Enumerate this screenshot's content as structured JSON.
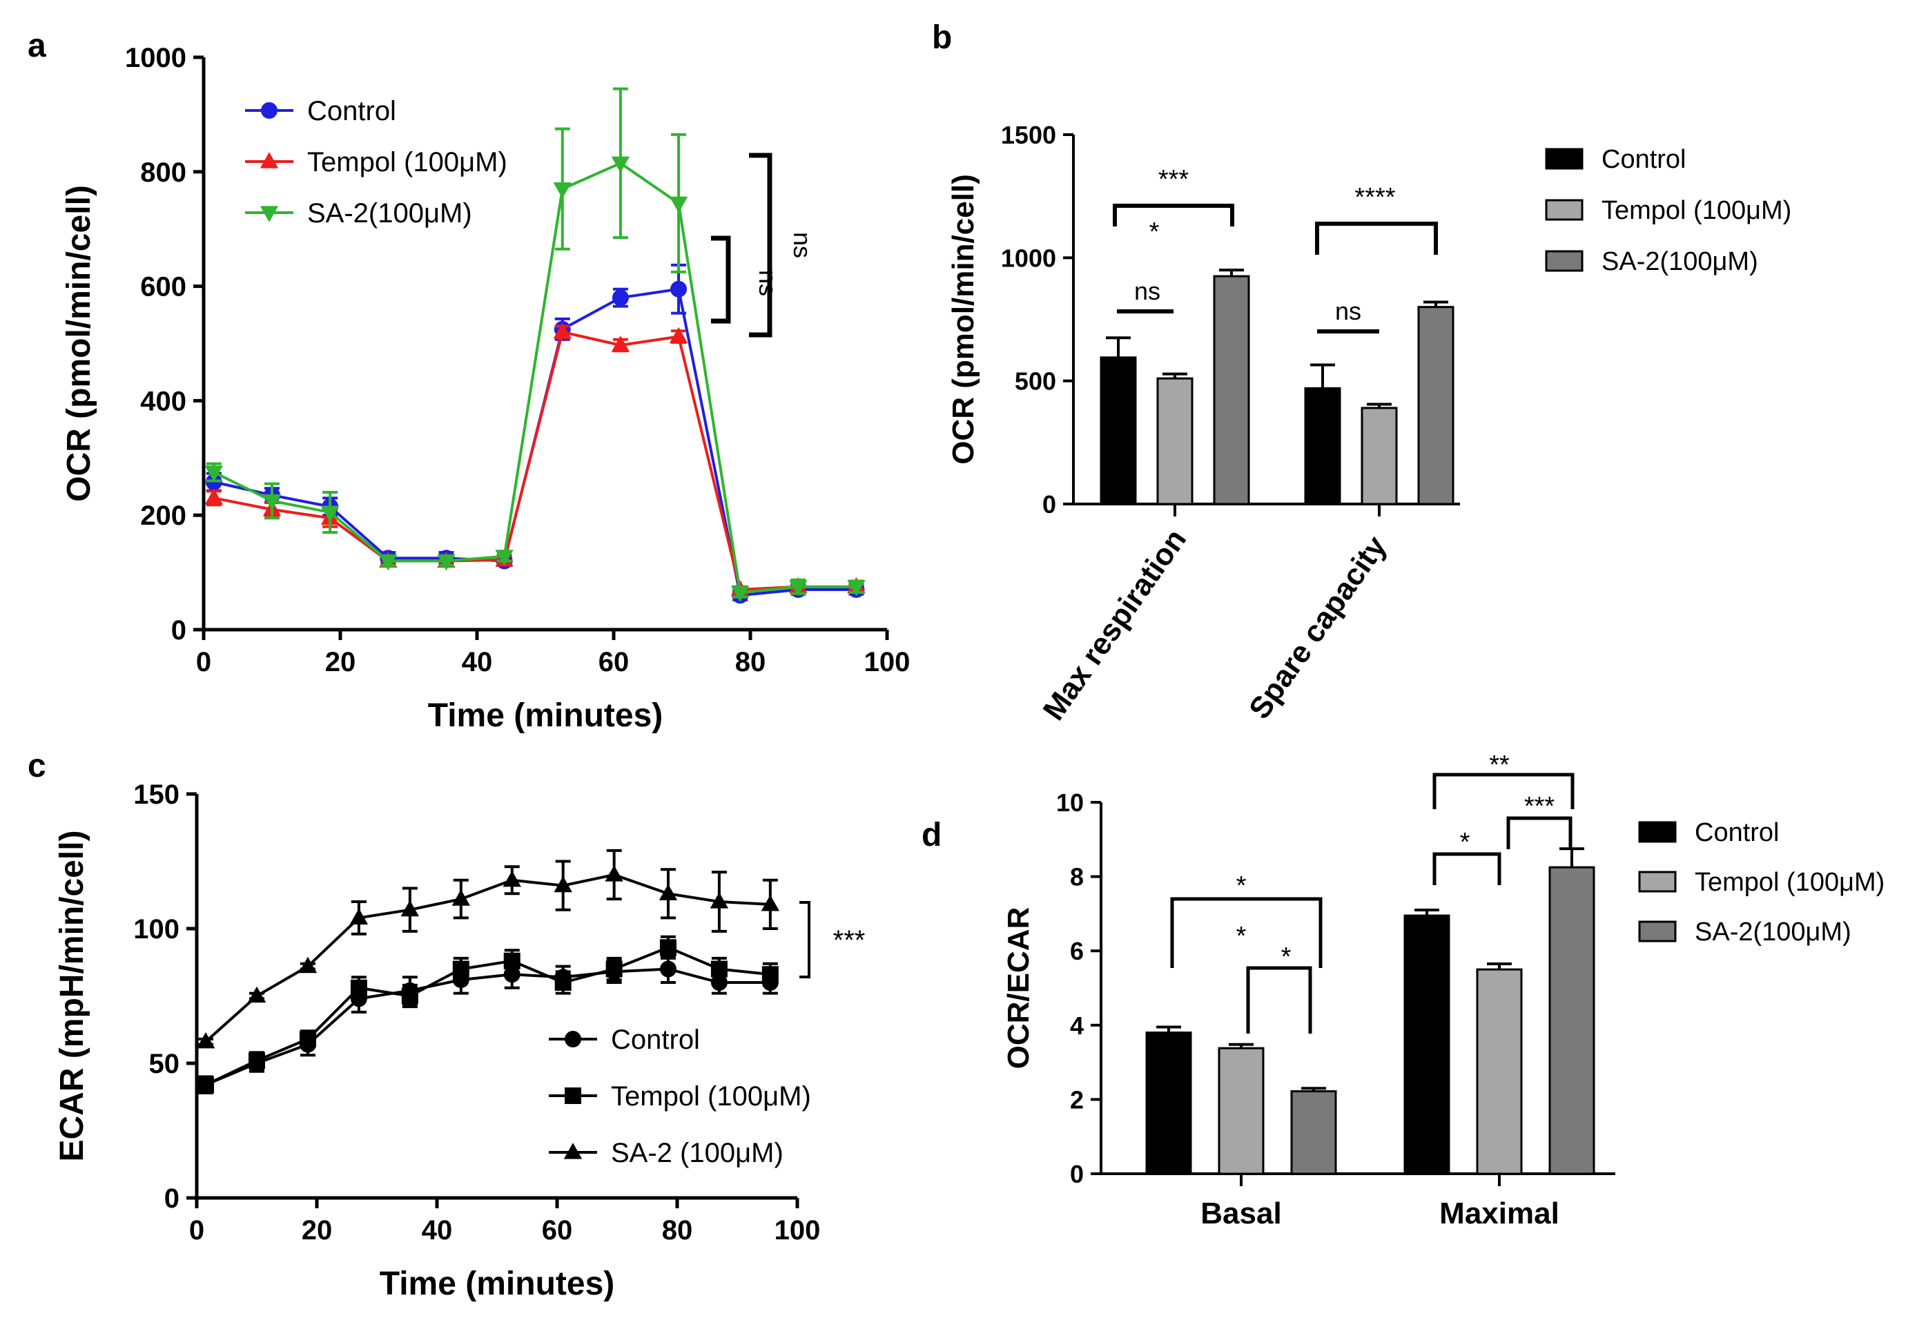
{
  "chart_data": [
    {
      "panel": "a",
      "type": "line",
      "xlabel": "Time (minutes)",
      "ylabel": "OCR (pmol/min/cell)",
      "xlim": [
        0,
        100
      ],
      "ylim": [
        0,
        1000
      ],
      "xticks": [
        "0",
        "20",
        "40",
        "60",
        "80",
        "100"
      ],
      "yticks": [
        "0",
        "200",
        "400",
        "600",
        "800",
        "1000"
      ],
      "x": [
        1.5,
        10,
        18.5,
        27,
        35.5,
        44,
        52.5,
        61,
        69.5,
        78.5,
        87,
        95.5
      ],
      "series": [
        {
          "name": "Control",
          "color": "#1f1fe0",
          "marker": "circle",
          "values": [
            258,
            235,
            215,
            125,
            125,
            120,
            525,
            580,
            595,
            60,
            70,
            70
          ],
          "errors": [
            15,
            12,
            15,
            10,
            10,
            8,
            18,
            15,
            42,
            8,
            8,
            8
          ]
        },
        {
          "name": "Tempol (100μM)",
          "color": "#ee1c1c",
          "marker": "triangle-up",
          "values": [
            230,
            210,
            195,
            120,
            120,
            122,
            520,
            497,
            512,
            70,
            75,
            75
          ],
          "errors": [
            12,
            12,
            15,
            8,
            8,
            8,
            10,
            10,
            10,
            5,
            5,
            5
          ]
        },
        {
          "name": "SA-2(100μM)",
          "color": "#2fb52f",
          "marker": "triangle-down",
          "values": [
            275,
            225,
            205,
            120,
            120,
            128,
            770,
            815,
            745,
            65,
            75,
            75
          ],
          "errors": [
            15,
            30,
            35,
            8,
            8,
            8,
            105,
            130,
            120,
            8,
            12,
            10
          ]
        }
      ],
      "annotations": [
        "ns",
        "ns"
      ]
    },
    {
      "panel": "b",
      "type": "bar",
      "ylabel": "OCR (pmol/min/cell)",
      "ylim": [
        0,
        1500
      ],
      "yticks": [
        "0",
        "500",
        "1000",
        "1500"
      ],
      "categories": [
        "Max respiration",
        "Spare capacity"
      ],
      "series": [
        {
          "name": "Control",
          "color": "#000000",
          "values": [
            595,
            470
          ],
          "errors": [
            80,
            95
          ]
        },
        {
          "name": "Tempol (100μM)",
          "color": "#a6a6a6",
          "values": [
            510,
            390
          ],
          "errors": [
            18,
            15
          ]
        },
        {
          "name": "SA-2(100μM)",
          "color": "#7a7a7a",
          "values": [
            925,
            800
          ],
          "errors": [
            25,
            20
          ]
        }
      ],
      "annotations": [
        "***",
        "*",
        "ns",
        "****",
        "ns"
      ]
    },
    {
      "panel": "c",
      "type": "line",
      "xlabel": "Time (minutes)",
      "ylabel": "ECAR (mpH/min/cell)",
      "xlim": [
        0,
        100
      ],
      "ylim": [
        0,
        150
      ],
      "xticks": [
        "0",
        "20",
        "40",
        "60",
        "80",
        "100"
      ],
      "yticks": [
        "0",
        "50",
        "100",
        "150"
      ],
      "x": [
        1.5,
        10,
        18.5,
        27,
        35.5,
        44,
        52.5,
        61,
        69.5,
        78.5,
        87,
        95.5
      ],
      "series": [
        {
          "name": "Control",
          "color": "#000000",
          "marker": "circle",
          "values": [
            42,
            50,
            57,
            74,
            77,
            81,
            83,
            82,
            84,
            85,
            80,
            80
          ],
          "errors": [
            3,
            3,
            4,
            5,
            5,
            5,
            5,
            4,
            4,
            5,
            4,
            4
          ]
        },
        {
          "name": "Tempol (100μM)",
          "color": "#000000",
          "marker": "square",
          "values": [
            42,
            51,
            59,
            78,
            75,
            85,
            88,
            80,
            85,
            93,
            85,
            83
          ],
          "errors": [
            3,
            3,
            3,
            4,
            4,
            4,
            4,
            4,
            4,
            4,
            4,
            4
          ]
        },
        {
          "name": "SA-2 (100μM)",
          "color": "#000000",
          "marker": "triangle-up",
          "values": [
            58,
            75,
            86,
            104,
            107,
            111,
            118,
            116,
            120,
            113,
            110,
            109
          ],
          "errors": [
            1,
            1,
            1,
            6,
            8,
            7,
            5,
            9,
            9,
            9,
            11,
            9
          ]
        }
      ],
      "annotations": [
        "***"
      ]
    },
    {
      "panel": "d",
      "type": "bar",
      "ylabel": "OCR/ECAR",
      "ylim": [
        0,
        10
      ],
      "yticks": [
        "0",
        "2",
        "4",
        "6",
        "8",
        "10"
      ],
      "categories": [
        "Basal",
        "Maximal"
      ],
      "series": [
        {
          "name": "Control",
          "color": "#000000",
          "values": [
            3.8,
            6.95
          ],
          "errors": [
            0.15,
            0.15
          ]
        },
        {
          "name": "Tempol (100μM)",
          "color": "#a6a6a6",
          "values": [
            3.38,
            5.5
          ],
          "errors": [
            0.1,
            0.15
          ]
        },
        {
          "name": "SA-2(100μM)",
          "color": "#7a7a7a",
          "values": [
            2.22,
            8.25
          ],
          "errors": [
            0.08,
            0.5
          ]
        }
      ],
      "annotations": [
        "*",
        "*",
        "*",
        "**",
        "*",
        "***"
      ]
    }
  ],
  "panel_labels": [
    "a",
    "b",
    "c",
    "d"
  ]
}
